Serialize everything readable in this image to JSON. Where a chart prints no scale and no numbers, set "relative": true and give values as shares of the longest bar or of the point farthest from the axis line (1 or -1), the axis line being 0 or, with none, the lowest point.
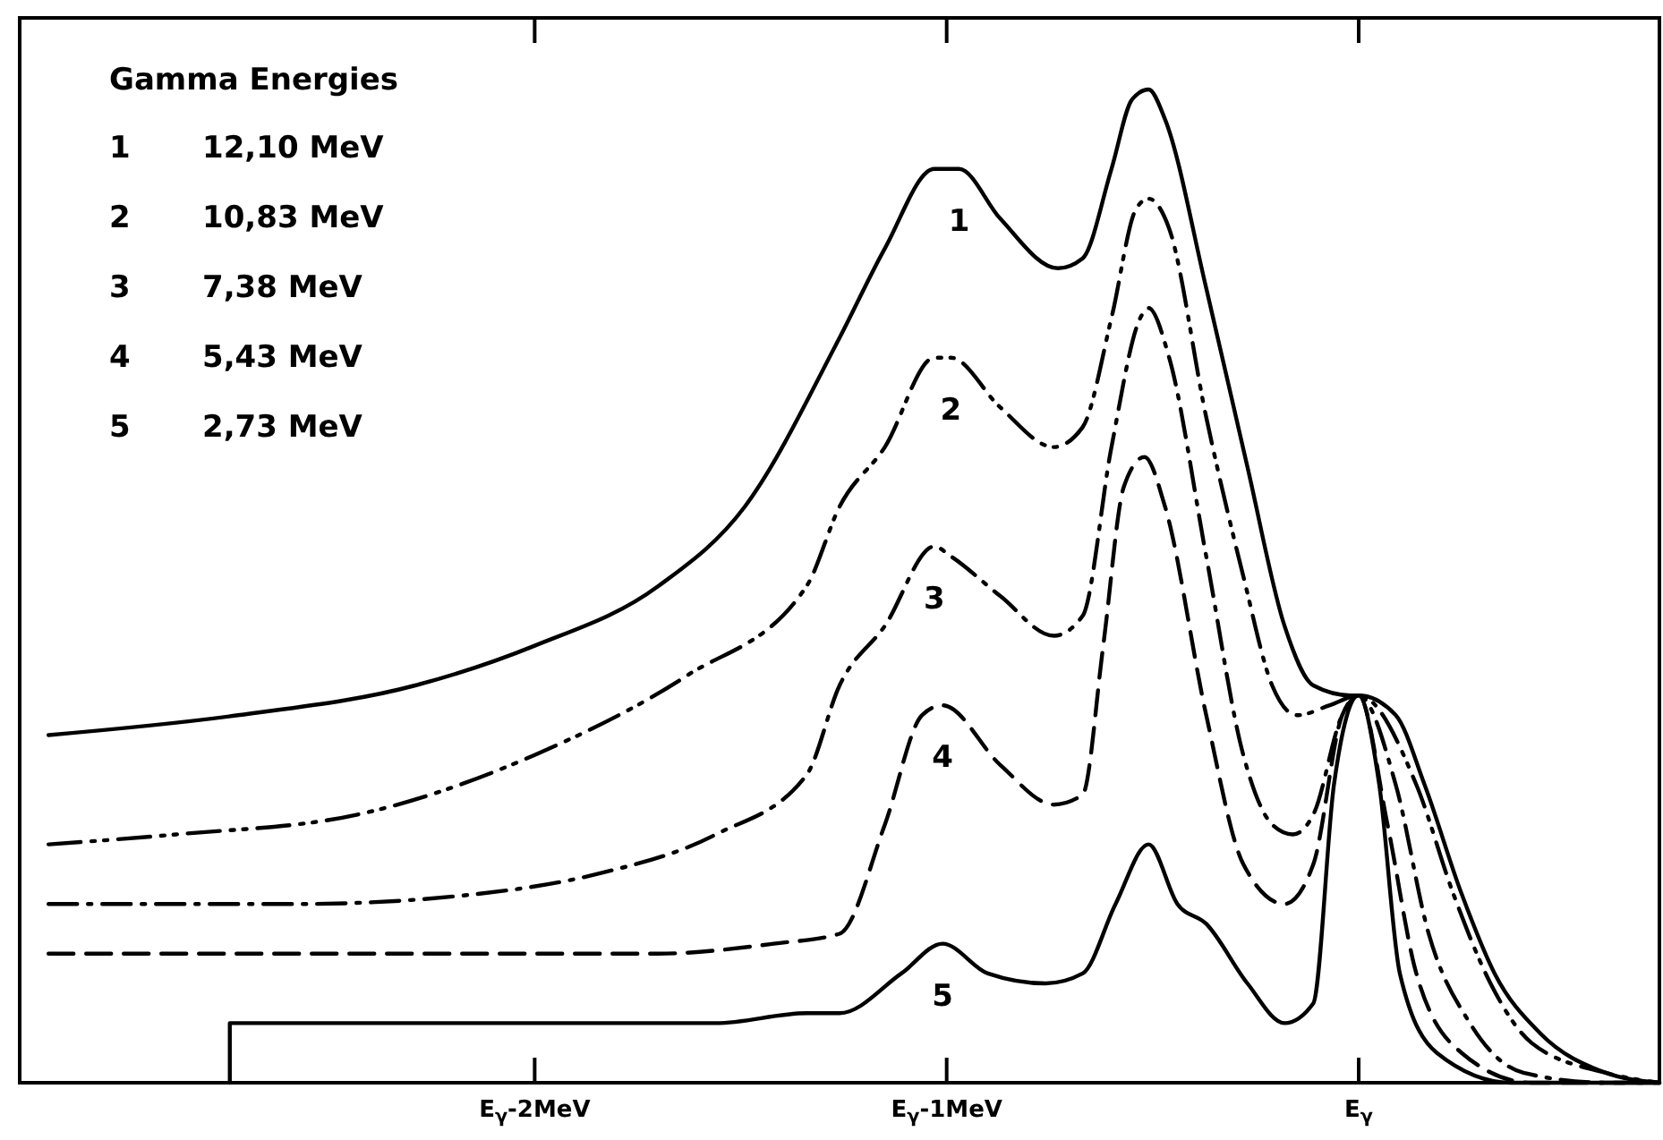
{
  "chart_data": {
    "type": "line",
    "relative": true,
    "legend_title": "Gamma Energies",
    "grid": false,
    "xlim": [
      -3.25,
      0.73
    ],
    "xticks": [
      {
        "value": -2,
        "label": "E$_{γ}$-2MeV"
      },
      {
        "value": -1,
        "label": "E$_{γ}$-1MeV"
      },
      {
        "value": 0,
        "label": "E$_{γ}$"
      }
    ],
    "series": [
      {
        "name": "1 12,10 MeV",
        "color": "#000000",
        "line_style": "solid",
        "x": [
          -3.18,
          -2.72,
          -2.29,
          -2.0,
          -1.7,
          -1.49,
          -1.26,
          -1.15,
          -1.03,
          -0.97,
          -0.87,
          -0.73,
          -0.67,
          -0.6,
          -0.55,
          -0.51,
          -0.47,
          -0.37,
          -0.27,
          -0.18,
          -0.11,
          -0.02,
          0,
          0.09,
          0.16,
          0.25,
          0.33,
          0.44,
          0.6,
          0.73
        ],
        "values": [
          0.35,
          0.37,
          0.4,
          0.44,
          0.5,
          0.58,
          0.75,
          0.84,
          0.92,
          0.92,
          0.87,
          0.82,
          0.83,
          0.92,
          0.99,
          1.0,
          0.97,
          0.8,
          0.62,
          0.46,
          0.4,
          0.39,
          0.39,
          0.37,
          0.3,
          0.19,
          0.11,
          0.05,
          0.01,
          0.0
        ]
      },
      {
        "name": "2 10,83 MeV",
        "color": "#000000",
        "line_style": "dashdotdot",
        "x": [
          -3.18,
          -2.87,
          -2.43,
          -2.0,
          -1.63,
          -1.34,
          -1.26,
          -1.15,
          -1.03,
          -0.99,
          -0.87,
          -0.74,
          -0.67,
          -0.6,
          -0.54,
          -0.51,
          -0.46,
          -0.37,
          -0.28,
          -0.21,
          -0.15,
          -0.07,
          0,
          0.14,
          0.23,
          0.32,
          0.42,
          0.6,
          0.73
        ],
        "values": [
          0.24,
          0.25,
          0.27,
          0.33,
          0.41,
          0.5,
          0.58,
          0.64,
          0.73,
          0.73,
          0.68,
          0.64,
          0.66,
          0.77,
          0.88,
          0.89,
          0.86,
          0.67,
          0.51,
          0.4,
          0.37,
          0.38,
          0.39,
          0.3,
          0.19,
          0.1,
          0.04,
          0.01,
          0.0
        ]
      },
      {
        "name": "3 7,38 MeV",
        "color": "#000000",
        "line_style": "dashdot",
        "x": [
          -3.18,
          -2.57,
          -2.14,
          -1.85,
          -1.56,
          -1.34,
          -1.26,
          -1.15,
          -1.03,
          -0.99,
          -0.87,
          -0.74,
          -0.67,
          -0.6,
          -0.53,
          -0.51,
          -0.46,
          -0.37,
          -0.28,
          -0.21,
          -0.16,
          -0.11,
          -0.04,
          0,
          0.09,
          0.17,
          0.27,
          0.4,
          0.6,
          0.73
        ],
        "values": [
          0.18,
          0.18,
          0.19,
          0.21,
          0.25,
          0.31,
          0.4,
          0.46,
          0.54,
          0.53,
          0.49,
          0.45,
          0.47,
          0.64,
          0.77,
          0.78,
          0.73,
          0.53,
          0.33,
          0.26,
          0.25,
          0.27,
          0.37,
          0.39,
          0.3,
          0.15,
          0.06,
          0.01,
          0.0,
          0.0
        ]
      },
      {
        "name": "4 5,43 MeV",
        "color": "#000000",
        "line_style": "dashed",
        "x": [
          -3.18,
          -2.43,
          -1.7,
          -1.42,
          -1.26,
          -1.15,
          -1.06,
          -1.01,
          -0.87,
          -0.74,
          -0.67,
          -0.62,
          -0.57,
          -0.52,
          -0.47,
          -0.37,
          -0.28,
          -0.18,
          -0.11,
          -0.04,
          0,
          0.07,
          0.14,
          0.25,
          0.42,
          0.73
        ],
        "values": [
          0.13,
          0.13,
          0.13,
          0.14,
          0.15,
          0.26,
          0.37,
          0.38,
          0.32,
          0.28,
          0.29,
          0.44,
          0.6,
          0.63,
          0.58,
          0.37,
          0.22,
          0.18,
          0.22,
          0.37,
          0.39,
          0.26,
          0.11,
          0.03,
          0.0,
          0.0
        ]
      },
      {
        "name": "5 2,73 MeV",
        "color": "#000000",
        "line_style": "solid",
        "x": [
          -2.74,
          -2.74,
          -2.14,
          -1.56,
          -1.34,
          -1.26,
          -1.11,
          -1.01,
          -0.9,
          -0.76,
          -0.67,
          -0.59,
          -0.51,
          -0.44,
          -0.37,
          -0.27,
          -0.18,
          -0.11,
          -0.06,
          0,
          0.05,
          0.1,
          0.19,
          0.37,
          0.73
        ],
        "values": [
          0.0,
          0.06,
          0.06,
          0.06,
          0.07,
          0.07,
          0.11,
          0.14,
          0.11,
          0.1,
          0.11,
          0.18,
          0.24,
          0.18,
          0.16,
          0.1,
          0.06,
          0.08,
          0.3,
          0.39,
          0.3,
          0.11,
          0.03,
          0.0,
          0.0
        ]
      }
    ],
    "annotations": [
      "1",
      "2",
      "3",
      "4",
      "5"
    ]
  }
}
